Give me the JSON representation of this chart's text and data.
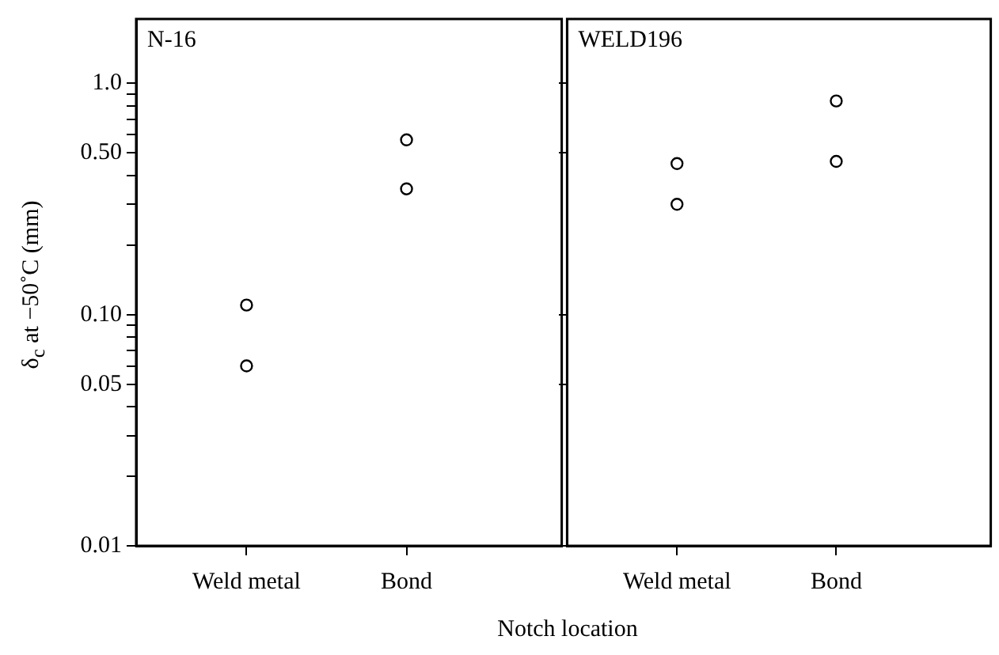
{
  "chart_data": [
    {
      "type": "scatter",
      "title": "N-16",
      "ylabel": "δ$_{c}$ at −50˚C (mm)",
      "xlabel": "Notch location",
      "categories": [
        "Weld metal",
        "Bond"
      ],
      "log": "y",
      "grid": false,
      "marker": "circle",
      "ylim": [
        0.01,
        1.9
      ],
      "yticks": [
        0.01,
        {
          "value": 0.02,
          "label": null
        },
        {
          "value": 0.03,
          "label": null
        },
        {
          "value": 0.04,
          "label": null
        },
        0.05,
        {
          "value": 0.06,
          "label": null
        },
        {
          "value": 0.07,
          "label": null
        },
        {
          "value": 0.08,
          "label": null
        },
        {
          "value": 0.09,
          "label": null
        },
        {
          "value": 0.1,
          "label": "0.10"
        },
        {
          "value": 0.2,
          "label": null
        },
        {
          "value": 0.3,
          "label": null
        },
        {
          "value": 0.4,
          "label": null
        },
        {
          "value": 0.5,
          "label": "0.50"
        },
        {
          "value": 0.6,
          "label": null
        },
        {
          "value": 0.7,
          "label": null
        },
        {
          "value": 0.8,
          "label": null
        },
        {
          "value": 0.9,
          "label": null
        },
        {
          "value": 1,
          "label": "1.0"
        }
      ],
      "series": [
        {
          "color": "#000000",
          "x": [
            "Weld metal",
            "Weld metal",
            "Bond",
            "Bond"
          ],
          "values": [
            0.11,
            0.06,
            0.57,
            0.35
          ]
        }
      ]
    },
    {
      "type": "scatter",
      "title": "WELD196",
      "categories": [
        "Weld metal",
        "Bond"
      ],
      "log": "y",
      "grid": false,
      "marker": "circle",
      "tick_labels": "x",
      "ylim": [
        0.01,
        1.9
      ],
      "yticks": [
        {
          "value": 0.01,
          "label": null
        },
        {
          "value": 0.05,
          "label": null
        },
        {
          "value": 0.1,
          "label": null
        },
        {
          "value": 0.5,
          "label": null
        },
        {
          "value": 1,
          "label": null
        }
      ],
      "series": [
        {
          "color": "#000000",
          "x": [
            "Weld metal",
            "Weld metal",
            "Bond",
            "Bond"
          ],
          "values": [
            0.45,
            0.3,
            0.84,
            0.46
          ]
        }
      ]
    }
  ]
}
